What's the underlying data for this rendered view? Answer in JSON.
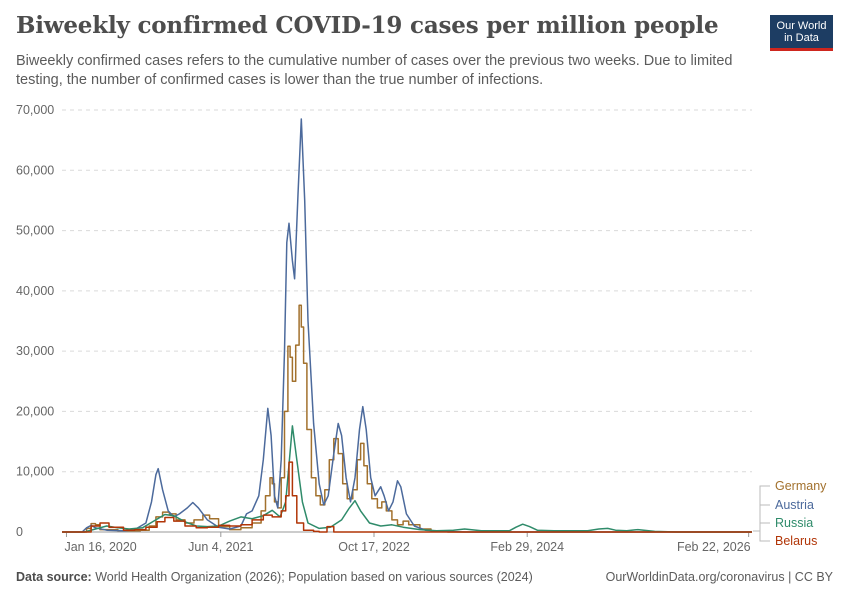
{
  "header": {
    "title": "Biweekly confirmed COVID-19 cases per million people",
    "subtitle": "Biweekly confirmed cases refers to the cumulative number of cases over the previous two weeks. Due to limited testing, the number of confirmed cases is lower than the true number of infections.",
    "logo_line1": "Our World",
    "logo_line2": "in Data"
  },
  "footer": {
    "source_label": "Data source:",
    "source_text": "World Health Organization (2026); Population based on various sources (2024)",
    "right_text": "OurWorldinData.org/coronavirus | CC BY"
  },
  "chart_data": {
    "type": "line",
    "title": "Biweekly confirmed COVID-19 cases per million people",
    "xlabel": "",
    "ylabel": "",
    "ylim": [
      0,
      70000
    ],
    "xlim": [
      2020.0,
      2026.17
    ],
    "yticks": [
      0,
      10000,
      20000,
      30000,
      40000,
      50000,
      60000,
      70000
    ],
    "ytick_labels": [
      "0",
      "10,000",
      "20,000",
      "30,000",
      "40,000",
      "50,000",
      "60,000",
      "70,000"
    ],
    "xticks": [
      2020.04,
      2021.42,
      2022.79,
      2024.16,
      2026.14
    ],
    "xtick_labels": [
      "Jan 16, 2020",
      "Jun 4, 2021",
      "Oct 17, 2022",
      "Feb 29, 2024",
      "Feb 22, 2026"
    ],
    "grid": true,
    "legend": "right",
    "series": [
      {
        "name": "Germany",
        "color": "#a2712d",
        "step": true,
        "points": [
          [
            2020.0,
            0
          ],
          [
            2020.18,
            0
          ],
          [
            2020.22,
            600
          ],
          [
            2020.26,
            1400
          ],
          [
            2020.3,
            1200
          ],
          [
            2020.34,
            400
          ],
          [
            2020.5,
            200
          ],
          [
            2020.7,
            300
          ],
          [
            2020.78,
            1000
          ],
          [
            2020.84,
            2500
          ],
          [
            2020.9,
            3300
          ],
          [
            2020.96,
            3000
          ],
          [
            2021.02,
            2000
          ],
          [
            2021.1,
            1500
          ],
          [
            2021.18,
            2000
          ],
          [
            2021.26,
            2800
          ],
          [
            2021.32,
            2200
          ],
          [
            2021.4,
            900
          ],
          [
            2021.5,
            400
          ],
          [
            2021.6,
            700
          ],
          [
            2021.7,
            1500
          ],
          [
            2021.78,
            3500
          ],
          [
            2021.82,
            6000
          ],
          [
            2021.86,
            9000
          ],
          [
            2021.88,
            8000
          ],
          [
            2021.9,
            5000
          ],
          [
            2021.93,
            4000
          ],
          [
            2021.96,
            9000
          ],
          [
            2021.99,
            20000
          ],
          [
            2022.02,
            30800
          ],
          [
            2022.04,
            29000
          ],
          [
            2022.06,
            25000
          ],
          [
            2022.09,
            31000
          ],
          [
            2022.12,
            37600
          ],
          [
            2022.14,
            34000
          ],
          [
            2022.16,
            28000
          ],
          [
            2022.19,
            17000
          ],
          [
            2022.23,
            9000
          ],
          [
            2022.27,
            6000
          ],
          [
            2022.31,
            4500
          ],
          [
            2022.35,
            7000
          ],
          [
            2022.39,
            12000
          ],
          [
            2022.43,
            15500
          ],
          [
            2022.47,
            13000
          ],
          [
            2022.51,
            8000
          ],
          [
            2022.55,
            5500
          ],
          [
            2022.6,
            7000
          ],
          [
            2022.64,
            12000
          ],
          [
            2022.67,
            14700
          ],
          [
            2022.7,
            11000
          ],
          [
            2022.73,
            8000
          ],
          [
            2022.77,
            5500
          ],
          [
            2022.82,
            4000
          ],
          [
            2022.86,
            5000
          ],
          [
            2022.9,
            3500
          ],
          [
            2022.95,
            2000
          ],
          [
            2023.0,
            1200
          ],
          [
            2023.05,
            1800
          ],
          [
            2023.1,
            1200
          ],
          [
            2023.2,
            500
          ],
          [
            2023.3,
            200
          ],
          [
            2023.45,
            0
          ],
          [
            2026.17,
            0
          ]
        ]
      },
      {
        "name": "Austria",
        "color": "#4c6a9c",
        "step": false,
        "points": [
          [
            2020.0,
            0
          ],
          [
            2020.18,
            0
          ],
          [
            2020.22,
            700
          ],
          [
            2020.26,
            1100
          ],
          [
            2020.3,
            700
          ],
          [
            2020.4,
            300
          ],
          [
            2020.55,
            200
          ],
          [
            2020.65,
            400
          ],
          [
            2020.75,
            1500
          ],
          [
            2020.8,
            5000
          ],
          [
            2020.84,
            9500
          ],
          [
            2020.86,
            10500
          ],
          [
            2020.9,
            7000
          ],
          [
            2020.95,
            3500
          ],
          [
            2021.0,
            2500
          ],
          [
            2021.05,
            3000
          ],
          [
            2021.12,
            4000
          ],
          [
            2021.17,
            4900
          ],
          [
            2021.22,
            4000
          ],
          [
            2021.3,
            2000
          ],
          [
            2021.4,
            800
          ],
          [
            2021.5,
            500
          ],
          [
            2021.6,
            1000
          ],
          [
            2021.65,
            3000
          ],
          [
            2021.7,
            3500
          ],
          [
            2021.76,
            6000
          ],
          [
            2021.8,
            12000
          ],
          [
            2021.84,
            20500
          ],
          [
            2021.87,
            16000
          ],
          [
            2021.9,
            6000
          ],
          [
            2021.93,
            4000
          ],
          [
            2021.96,
            12000
          ],
          [
            2021.99,
            30000
          ],
          [
            2022.01,
            48000
          ],
          [
            2022.03,
            51200
          ],
          [
            2022.06,
            45000
          ],
          [
            2022.08,
            42000
          ],
          [
            2022.11,
            56000
          ],
          [
            2022.14,
            68500
          ],
          [
            2022.17,
            55000
          ],
          [
            2022.2,
            35000
          ],
          [
            2022.25,
            18000
          ],
          [
            2022.3,
            8000
          ],
          [
            2022.34,
            4500
          ],
          [
            2022.38,
            6000
          ],
          [
            2022.43,
            13000
          ],
          [
            2022.47,
            18000
          ],
          [
            2022.5,
            16000
          ],
          [
            2022.54,
            9000
          ],
          [
            2022.58,
            5000
          ],
          [
            2022.62,
            9000
          ],
          [
            2022.66,
            17000
          ],
          [
            2022.69,
            20800
          ],
          [
            2022.72,
            17000
          ],
          [
            2022.76,
            9000
          ],
          [
            2022.8,
            6000
          ],
          [
            2022.85,
            7500
          ],
          [
            2022.88,
            6000
          ],
          [
            2022.92,
            3500
          ],
          [
            2022.96,
            5000
          ],
          [
            2023.0,
            8500
          ],
          [
            2023.03,
            7500
          ],
          [
            2023.08,
            3000
          ],
          [
            2023.15,
            1000
          ],
          [
            2023.25,
            300
          ],
          [
            2023.4,
            100
          ],
          [
            2023.6,
            0
          ],
          [
            2026.17,
            0
          ]
        ]
      },
      {
        "name": "Russia",
        "color": "#2f8b6a",
        "step": false,
        "points": [
          [
            2020.0,
            0
          ],
          [
            2020.2,
            0
          ],
          [
            2020.3,
            500
          ],
          [
            2020.4,
            1000
          ],
          [
            2020.5,
            700
          ],
          [
            2020.6,
            500
          ],
          [
            2020.72,
            700
          ],
          [
            2020.82,
            1800
          ],
          [
            2020.92,
            2900
          ],
          [
            2021.0,
            2700
          ],
          [
            2021.1,
            1700
          ],
          [
            2021.2,
            1000
          ],
          [
            2021.3,
            900
          ],
          [
            2021.4,
            1000
          ],
          [
            2021.5,
            1800
          ],
          [
            2021.6,
            2500
          ],
          [
            2021.7,
            2200
          ],
          [
            2021.8,
            2700
          ],
          [
            2021.88,
            3600
          ],
          [
            2021.95,
            2500
          ],
          [
            2022.0,
            5000
          ],
          [
            2022.06,
            17600
          ],
          [
            2022.1,
            12000
          ],
          [
            2022.15,
            5000
          ],
          [
            2022.2,
            1500
          ],
          [
            2022.3,
            600
          ],
          [
            2022.4,
            800
          ],
          [
            2022.5,
            2000
          ],
          [
            2022.57,
            4000
          ],
          [
            2022.62,
            5200
          ],
          [
            2022.67,
            3500
          ],
          [
            2022.75,
            1500
          ],
          [
            2022.85,
            1000
          ],
          [
            2022.95,
            1200
          ],
          [
            2023.05,
            800
          ],
          [
            2023.2,
            400
          ],
          [
            2023.35,
            200
          ],
          [
            2023.5,
            300
          ],
          [
            2023.6,
            500
          ],
          [
            2023.75,
            200
          ],
          [
            2024.0,
            200
          ],
          [
            2024.06,
            800
          ],
          [
            2024.12,
            1300
          ],
          [
            2024.18,
            900
          ],
          [
            2024.25,
            300
          ],
          [
            2024.4,
            200
          ],
          [
            2024.7,
            200
          ],
          [
            2024.8,
            500
          ],
          [
            2024.88,
            600
          ],
          [
            2024.95,
            300
          ],
          [
            2025.05,
            200
          ],
          [
            2025.15,
            400
          ],
          [
            2025.3,
            100
          ],
          [
            2025.5,
            0
          ],
          [
            2026.17,
            0
          ]
        ]
      },
      {
        "name": "Belarus",
        "color": "#b13507",
        "step": true,
        "points": [
          [
            2020.0,
            0
          ],
          [
            2020.2,
            0
          ],
          [
            2020.26,
            1000
          ],
          [
            2020.34,
            1500
          ],
          [
            2020.42,
            800
          ],
          [
            2020.55,
            300
          ],
          [
            2020.65,
            400
          ],
          [
            2020.75,
            800
          ],
          [
            2020.85,
            1700
          ],
          [
            2020.92,
            2400
          ],
          [
            2021.0,
            1800
          ],
          [
            2021.1,
            1000
          ],
          [
            2021.2,
            700
          ],
          [
            2021.3,
            800
          ],
          [
            2021.4,
            1100
          ],
          [
            2021.5,
            1000
          ],
          [
            2021.6,
            1200
          ],
          [
            2021.7,
            2000
          ],
          [
            2021.8,
            2800
          ],
          [
            2021.88,
            2500
          ],
          [
            2021.96,
            3500
          ],
          [
            2022.0,
            6000
          ],
          [
            2022.03,
            11600
          ],
          [
            2022.06,
            6000
          ],
          [
            2022.1,
            1500
          ],
          [
            2022.16,
            300
          ],
          [
            2022.25,
            100
          ],
          [
            2022.3,
            0
          ],
          [
            2022.36,
            0
          ],
          [
            2022.37,
            900
          ],
          [
            2022.42,
            900
          ],
          [
            2022.43,
            0
          ],
          [
            2026.17,
            0
          ]
        ]
      }
    ]
  }
}
